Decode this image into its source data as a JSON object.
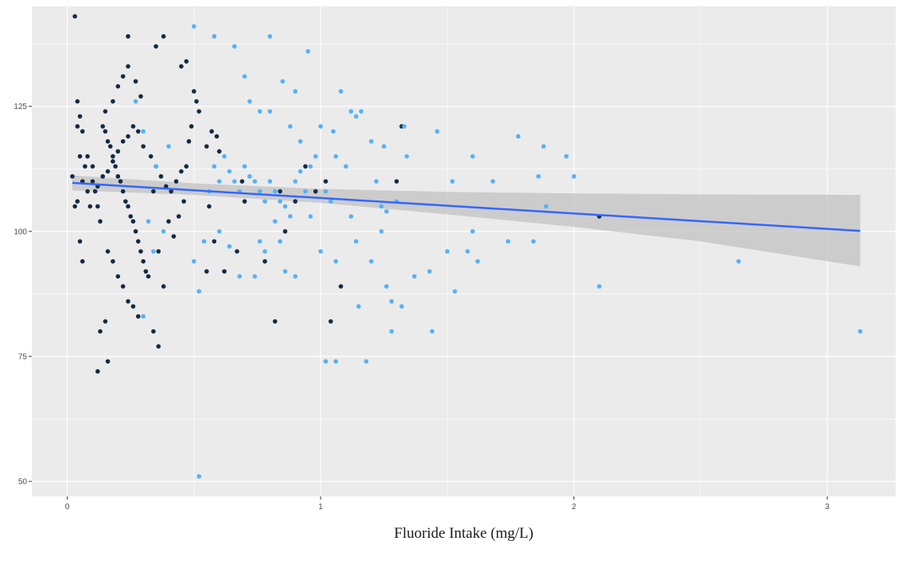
{
  "chart_data": {
    "type": "scatter",
    "title": "",
    "xlabel": "Fluoride Intake (mg/L)",
    "ylabel": "",
    "xlim": [
      -0.14,
      3.27
    ],
    "ylim": [
      47,
      145
    ],
    "x_ticks": [
      0,
      1,
      2,
      3
    ],
    "x_tick_labels": [
      "0",
      "1",
      "2",
      "3"
    ],
    "y_ticks": [
      50,
      75,
      100,
      125
    ],
    "y_tick_labels": [
      "50",
      "75",
      "100",
      "125"
    ],
    "grid": true,
    "legend": "none",
    "colors": {
      "panel": "#ebebeb",
      "grid": "#ffffff",
      "dark_points": "#132b43",
      "light_points": "#56b1f7",
      "trend_line": "#3366ff",
      "ribbon": "#bfbfbf"
    },
    "series": [
      {
        "color": "#132b43",
        "points": [
          [
            0.03,
            143
          ],
          [
            0.02,
            111
          ],
          [
            0.04,
            121
          ],
          [
            0.04,
            126
          ],
          [
            0.05,
            123
          ],
          [
            0.06,
            120
          ],
          [
            0.05,
            115
          ],
          [
            0.07,
            113
          ],
          [
            0.06,
            110
          ],
          [
            0.08,
            108
          ],
          [
            0.09,
            105
          ],
          [
            0.04,
            106
          ],
          [
            0.03,
            105
          ],
          [
            0.05,
            98
          ],
          [
            0.06,
            94
          ],
          [
            0.08,
            115
          ],
          [
            0.1,
            113
          ],
          [
            0.1,
            110
          ],
          [
            0.11,
            108
          ],
          [
            0.12,
            105
          ],
          [
            0.13,
            102
          ],
          [
            0.14,
            121
          ],
          [
            0.15,
            120
          ],
          [
            0.16,
            118
          ],
          [
            0.17,
            117
          ],
          [
            0.18,
            115
          ],
          [
            0.19,
            113
          ],
          [
            0.2,
            111
          ],
          [
            0.21,
            110
          ],
          [
            0.22,
            108
          ],
          [
            0.23,
            106
          ],
          [
            0.24,
            105
          ],
          [
            0.25,
            103
          ],
          [
            0.26,
            102
          ],
          [
            0.27,
            100
          ],
          [
            0.28,
            98
          ],
          [
            0.29,
            96
          ],
          [
            0.3,
            94
          ],
          [
            0.31,
            92
          ],
          [
            0.32,
            91
          ],
          [
            0.15,
            124
          ],
          [
            0.18,
            126
          ],
          [
            0.2,
            129
          ],
          [
            0.22,
            131
          ],
          [
            0.24,
            133
          ],
          [
            0.27,
            130
          ],
          [
            0.29,
            127
          ],
          [
            0.12,
            109
          ],
          [
            0.14,
            111
          ],
          [
            0.16,
            112
          ],
          [
            0.18,
            114
          ],
          [
            0.2,
            116
          ],
          [
            0.22,
            118
          ],
          [
            0.24,
            119
          ],
          [
            0.26,
            121
          ],
          [
            0.28,
            120
          ],
          [
            0.3,
            117
          ],
          [
            0.33,
            115
          ],
          [
            0.35,
            113
          ],
          [
            0.37,
            111
          ],
          [
            0.39,
            109
          ],
          [
            0.41,
            108
          ],
          [
            0.43,
            110
          ],
          [
            0.45,
            112
          ],
          [
            0.47,
            113
          ],
          [
            0.16,
            96
          ],
          [
            0.18,
            94
          ],
          [
            0.2,
            91
          ],
          [
            0.22,
            89
          ],
          [
            0.24,
            86
          ],
          [
            0.26,
            85
          ],
          [
            0.28,
            83
          ],
          [
            0.15,
            82
          ],
          [
            0.13,
            80
          ],
          [
            0.12,
            72
          ],
          [
            0.16,
            74
          ],
          [
            0.34,
            80
          ],
          [
            0.36,
            77
          ],
          [
            0.38,
            89
          ],
          [
            0.24,
            139
          ],
          [
            0.35,
            137
          ],
          [
            0.38,
            139
          ],
          [
            0.45,
            133
          ],
          [
            0.47,
            134
          ],
          [
            0.5,
            128
          ],
          [
            0.51,
            126
          ],
          [
            0.52,
            124
          ],
          [
            0.49,
            121
          ],
          [
            0.48,
            118
          ],
          [
            0.55,
            117
          ],
          [
            0.57,
            120
          ],
          [
            0.59,
            119
          ],
          [
            0.6,
            116
          ],
          [
            0.58,
            98
          ],
          [
            0.55,
            92
          ],
          [
            0.56,
            105
          ],
          [
            0.62,
            92
          ],
          [
            0.67,
            96
          ],
          [
            0.69,
            110
          ],
          [
            0.7,
            106
          ],
          [
            0.78,
            94
          ],
          [
            0.82,
            82
          ],
          [
            0.84,
            108
          ],
          [
            0.86,
            100
          ],
          [
            0.9,
            106
          ],
          [
            0.94,
            113
          ],
          [
            0.98,
            108
          ],
          [
            1.02,
            110
          ],
          [
            1.08,
            89
          ],
          [
            1.04,
            82
          ],
          [
            1.32,
            121
          ],
          [
            1.3,
            110
          ],
          [
            2.1,
            103
          ],
          [
            0.34,
            108
          ],
          [
            0.36,
            96
          ],
          [
            0.4,
            102
          ],
          [
            0.42,
            99
          ],
          [
            0.44,
            103
          ],
          [
            0.46,
            106
          ]
        ]
      },
      {
        "color": "#56b1f7",
        "points": [
          [
            0.5,
            141
          ],
          [
            0.58,
            139
          ],
          [
            0.66,
            137
          ],
          [
            0.8,
            139
          ],
          [
            0.95,
            136
          ],
          [
            0.7,
            131
          ],
          [
            0.85,
            130
          ],
          [
            0.9,
            128
          ],
          [
            0.72,
            126
          ],
          [
            0.76,
            124
          ],
          [
            0.8,
            124
          ],
          [
            0.88,
            121
          ],
          [
            0.92,
            118
          ],
          [
            1.0,
            121
          ],
          [
            1.05,
            120
          ],
          [
            1.08,
            128
          ],
          [
            1.12,
            124
          ],
          [
            1.14,
            123
          ],
          [
            1.16,
            124
          ],
          [
            1.2,
            118
          ],
          [
            1.25,
            117
          ],
          [
            1.33,
            121
          ],
          [
            1.34,
            115
          ],
          [
            1.3,
            106
          ],
          [
            1.46,
            120
          ],
          [
            1.52,
            110
          ],
          [
            1.6,
            115
          ],
          [
            1.68,
            110
          ],
          [
            1.78,
            119
          ],
          [
            1.88,
            117
          ],
          [
            1.97,
            115
          ],
          [
            2.0,
            111
          ],
          [
            1.86,
            111
          ],
          [
            1.89,
            105
          ],
          [
            1.6,
            100
          ],
          [
            1.58,
            96
          ],
          [
            1.62,
            94
          ],
          [
            1.74,
            98
          ],
          [
            1.84,
            98
          ],
          [
            1.5,
            96
          ],
          [
            1.43,
            92
          ],
          [
            1.37,
            91
          ],
          [
            1.2,
            94
          ],
          [
            1.24,
            100
          ],
          [
            1.26,
            89
          ],
          [
            1.28,
            86
          ],
          [
            1.32,
            85
          ],
          [
            1.15,
            85
          ],
          [
            1.28,
            80
          ],
          [
            1.44,
            80
          ],
          [
            1.53,
            88
          ],
          [
            1.18,
            74
          ],
          [
            1.06,
            74
          ],
          [
            1.02,
            74
          ],
          [
            2.1,
            89
          ],
          [
            2.65,
            94
          ],
          [
            3.13,
            80
          ],
          [
            0.52,
            51
          ],
          [
            0.6,
            100
          ],
          [
            0.64,
            97
          ],
          [
            0.68,
            91
          ],
          [
            0.74,
            91
          ],
          [
            0.76,
            98
          ],
          [
            0.78,
            96
          ],
          [
            0.82,
            102
          ],
          [
            0.84,
            98
          ],
          [
            0.86,
            92
          ],
          [
            0.9,
            91
          ],
          [
            0.96,
            103
          ],
          [
            1.0,
            96
          ],
          [
            1.06,
            94
          ],
          [
            1.12,
            103
          ],
          [
            0.5,
            94
          ],
          [
            0.52,
            88
          ],
          [
            0.54,
            98
          ],
          [
            0.56,
            108
          ],
          [
            0.58,
            113
          ],
          [
            0.6,
            110
          ],
          [
            0.62,
            115
          ],
          [
            0.64,
            112
          ],
          [
            0.66,
            110
          ],
          [
            0.68,
            108
          ],
          [
            0.7,
            113
          ],
          [
            0.72,
            111
          ],
          [
            0.74,
            110
          ],
          [
            0.76,
            108
          ],
          [
            0.78,
            106
          ],
          [
            0.8,
            110
          ],
          [
            0.82,
            108
          ],
          [
            0.84,
            106
          ],
          [
            0.86,
            105
          ],
          [
            0.88,
            103
          ],
          [
            0.9,
            110
          ],
          [
            0.92,
            112
          ],
          [
            0.94,
            108
          ],
          [
            0.96,
            113
          ],
          [
            0.98,
            115
          ],
          [
            1.02,
            108
          ],
          [
            1.04,
            106
          ],
          [
            1.06,
            115
          ],
          [
            1.1,
            113
          ],
          [
            1.14,
            98
          ],
          [
            1.22,
            110
          ],
          [
            1.24,
            105
          ],
          [
            1.26,
            104
          ],
          [
            0.27,
            126
          ],
          [
            0.3,
            120
          ],
          [
            0.35,
            113
          ],
          [
            0.4,
            117
          ],
          [
            0.38,
            100
          ],
          [
            0.3,
            83
          ],
          [
            0.32,
            102
          ],
          [
            0.34,
            96
          ]
        ]
      }
    ],
    "trend_line": {
      "x": [
        0.02,
        3.13
      ],
      "y": [
        109.7,
        100.1
      ]
    },
    "confidence_band": {
      "x": [
        0.02,
        0.5,
        1.0,
        1.5,
        2.0,
        2.5,
        3.13
      ],
      "lower": [
        108.2,
        107.3,
        105.7,
        103.4,
        100.9,
        98.0,
        93.0
      ],
      "upper": [
        111.2,
        109.6,
        108.5,
        107.9,
        107.6,
        107.4,
        107.3
      ]
    }
  }
}
